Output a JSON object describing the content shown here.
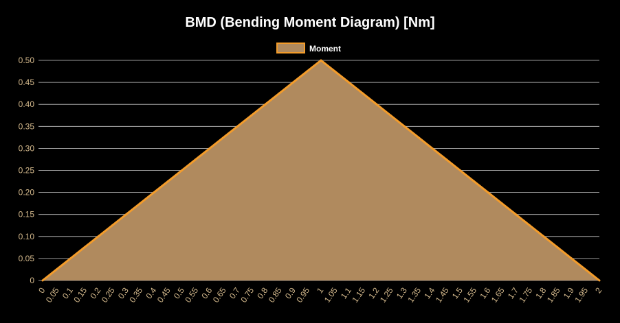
{
  "chart_data": {
    "type": "area",
    "title": "BMD (Bending Moment Diagram) [Nm]",
    "xlabel": "",
    "ylabel": "",
    "legend_position": "top",
    "grid": true,
    "ylim": [
      0,
      0.5
    ],
    "y_ticks": [
      "0",
      "0.05",
      "0.10",
      "0.15",
      "0.20",
      "0.25",
      "0.30",
      "0.35",
      "0.40",
      "0.45",
      "0.50"
    ],
    "y_tick_values": [
      0,
      0.05,
      0.1,
      0.15,
      0.2,
      0.25,
      0.3,
      0.35,
      0.4,
      0.45,
      0.5
    ],
    "x_labels": [
      "0",
      "0.05",
      "0.1",
      "0.15",
      "0.2",
      "0.25",
      "0.3",
      "0.35",
      "0.4",
      "0.45",
      "0.5",
      "0.55",
      "0.6",
      "0.65",
      "0.7",
      "0.75",
      "0.8",
      "0.85",
      "0.9",
      "0.95",
      "1",
      "1.05",
      "1.1",
      "1.15",
      "1.2",
      "1.25",
      "1.3",
      "1.35",
      "1.4",
      "1.45",
      "1.5",
      "1.55",
      "1.6",
      "1.65",
      "1.7",
      "1.75",
      "1.8",
      "1.85",
      "1.9",
      "1.95",
      "2"
    ],
    "series": [
      {
        "name": "Moment",
        "values": [
          0,
          0.025,
          0.05,
          0.075,
          0.1,
          0.125,
          0.15,
          0.175,
          0.2,
          0.225,
          0.25,
          0.275,
          0.3,
          0.325,
          0.35,
          0.375,
          0.4,
          0.425,
          0.45,
          0.475,
          0.5,
          0.475,
          0.45,
          0.425,
          0.4,
          0.375,
          0.35,
          0.325,
          0.3,
          0.275,
          0.25,
          0.225,
          0.2,
          0.175,
          0.15,
          0.125,
          0.1,
          0.075,
          0.05,
          0.025,
          0
        ],
        "line_color": "#F39C2B",
        "fill_color": "#B08A5E"
      }
    ],
    "colors": {
      "background": "#000000",
      "title": "#FFFFFF",
      "legend_text": "#FFFFFF",
      "tick_text": "#D4B98C",
      "grid": "#CCCCCC"
    }
  }
}
